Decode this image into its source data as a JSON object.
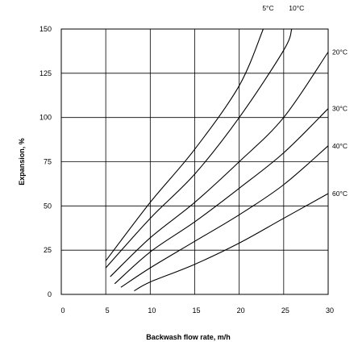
{
  "chart_data": {
    "type": "line",
    "title": "",
    "xlabel": "Backwash  flow rate,  m/h",
    "ylabel": "Expansion,  %",
    "xlim": [
      0,
      30
    ],
    "ylim": [
      0,
      150
    ],
    "xticks": [
      "0",
      "5",
      "10",
      "15",
      "20",
      "25",
      "30"
    ],
    "yticks": [
      "0",
      "25",
      "50",
      "75",
      "100",
      "125",
      "150"
    ],
    "grid": true,
    "series": [
      {
        "name": "5°C",
        "x": [
          5,
          10,
          15,
          20,
          22.7
        ],
        "y": [
          19,
          52,
          82,
          118,
          150
        ]
      },
      {
        "name": "10°C",
        "x": [
          5,
          10,
          15,
          20,
          25,
          25.9
        ],
        "y": [
          15,
          43,
          68,
          100,
          138,
          150
        ]
      },
      {
        "name": "20°C",
        "x": [
          5.5,
          10,
          15,
          20,
          25,
          30
        ],
        "y": [
          10,
          32,
          52,
          75,
          100,
          137
        ]
      },
      {
        "name": "30°C",
        "x": [
          6,
          10,
          15,
          20,
          25,
          30
        ],
        "y": [
          6,
          24,
          41,
          60,
          80,
          105
        ]
      },
      {
        "name": "40°C",
        "x": [
          6.7,
          10,
          15,
          20,
          25,
          30
        ],
        "y": [
          4,
          15,
          30,
          45,
          62,
          84
        ]
      },
      {
        "name": "60°C",
        "x": [
          8.2,
          10,
          15,
          20,
          25,
          30
        ],
        "y": [
          2,
          7,
          17,
          29,
          43,
          57
        ]
      }
    ]
  }
}
